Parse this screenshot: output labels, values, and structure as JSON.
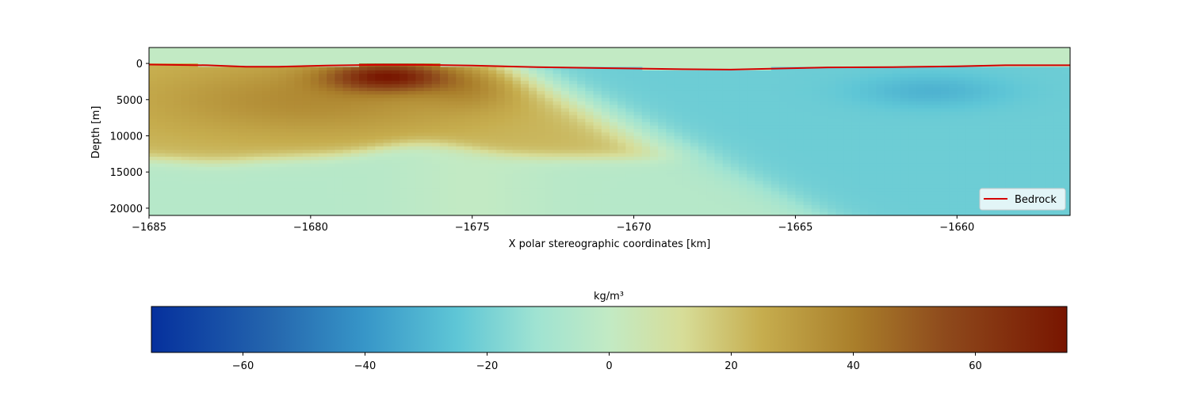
{
  "chart_data": [
    {
      "type": "heatmap",
      "title": "",
      "xlabel": "X polar stereographic coordinates [km]",
      "ylabel": "Depth [m]",
      "xlim": [
        -1685,
        -1656.5
      ],
      "ylim": [
        21000,
        -2200
      ],
      "y_inverted": true,
      "xticks": [
        -1685,
        -1680,
        -1675,
        -1670,
        -1665,
        -1660
      ],
      "xtick_labels": [
        "−1685",
        "−1680",
        "−1675",
        "−1670",
        "−1665",
        "−1660"
      ],
      "yticks": [
        0,
        5000,
        10000,
        15000,
        20000
      ],
      "ytick_labels": [
        "0",
        "5000",
        "10000",
        "15000",
        "20000"
      ],
      "grid": false,
      "legend": {
        "position": "lower-right",
        "entries": [
          {
            "label": "Bedrock",
            "color": "#d40000",
            "style": "line"
          }
        ]
      },
      "above_bedrock_color": "#c2eac4",
      "series": [
        {
          "name": "Bedrock",
          "kind": "line",
          "color": "#d40000",
          "x": [
            -1685,
            -1683.2,
            -1682,
            -1681,
            -1679.5,
            -1678,
            -1676.5,
            -1675,
            -1673,
            -1671.5,
            -1670,
            -1668.5,
            -1667,
            -1665.5,
            -1664,
            -1662,
            -1660,
            -1658.5,
            -1656.5
          ],
          "y": [
            150,
            250,
            450,
            450,
            300,
            200,
            200,
            300,
            500,
            600,
            700,
            800,
            850,
            700,
            550,
            500,
            400,
            250,
            250
          ]
        }
      ],
      "density_anomaly_regions": [
        {
          "description": "positive anomaly body",
          "x": [
            -1685,
            -1673
          ],
          "depth": [
            400,
            13500
          ],
          "peak_value": 75
        },
        {
          "description": "strong core",
          "x": [
            -1679,
            -1676.5
          ],
          "depth": [
            400,
            3500
          ],
          "value": 75
        },
        {
          "description": "western background",
          "x": [
            -1685,
            -1673
          ],
          "depth": [
            13500,
            21000
          ],
          "value": -4
        },
        {
          "description": "eastern negative body",
          "x": [
            -1673,
            -1656.5
          ],
          "depth": [
            1000,
            21000
          ],
          "value": -24
        },
        {
          "description": "local minimum",
          "x": [
            -1662.5,
            -1659
          ],
          "depth": [
            1500,
            6000
          ],
          "value": -32
        }
      ]
    },
    {
      "type": "heatmap",
      "role": "colorbar",
      "title": "kg/m³",
      "xlim": [
        -75,
        75
      ],
      "xticks": [
        -60,
        -40,
        -20,
        0,
        20,
        40,
        60
      ],
      "xtick_labels": [
        "−60",
        "−40",
        "−20",
        "0",
        "20",
        "40",
        "60"
      ],
      "colormap": [
        {
          "value": -75,
          "color": "#05309d"
        },
        {
          "value": -55,
          "color": "#2567ae"
        },
        {
          "value": -40,
          "color": "#3796c8"
        },
        {
          "value": -25,
          "color": "#5ec6d6"
        },
        {
          "value": -12,
          "color": "#9fe3d2"
        },
        {
          "value": 0,
          "color": "#c2eac4"
        },
        {
          "value": 12,
          "color": "#d7dd98"
        },
        {
          "value": 25,
          "color": "#c6ad4e"
        },
        {
          "value": 40,
          "color": "#aa7f2b"
        },
        {
          "value": 55,
          "color": "#8e4a1c"
        },
        {
          "value": 75,
          "color": "#781500"
        }
      ]
    }
  ]
}
